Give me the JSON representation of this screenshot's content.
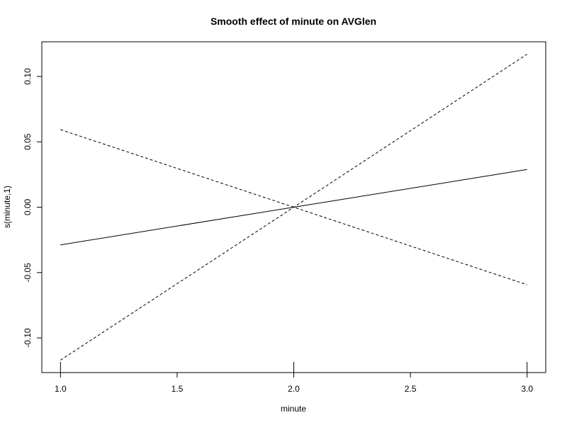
{
  "chart_data": {
    "type": "line",
    "title": "Smooth effect of minute on AVGlen",
    "xlabel": "minute",
    "ylabel": "s(minute,1)",
    "xlim": [
      0.92,
      3.08
    ],
    "ylim": [
      -0.1265,
      0.1265
    ],
    "x_ticks": [
      1.0,
      1.5,
      2.0,
      2.5,
      3.0
    ],
    "x_tick_labels": [
      "1.0",
      "1.5",
      "2.0",
      "2.5",
      "3.0"
    ],
    "y_ticks": [
      -0.1,
      -0.05,
      0.0,
      0.05,
      0.1
    ],
    "y_tick_labels": [
      "-0.10",
      "-0.05",
      "0.00",
      "0.05",
      "0.10"
    ],
    "rug": [
      1.0,
      2.0,
      3.0
    ],
    "grid": false,
    "series": [
      {
        "style": "solid",
        "x": [
          1.0,
          2.0,
          3.0
        ],
        "y": [
          -0.0288,
          0.0,
          0.0288
        ]
      },
      {
        "style": "dashed",
        "x": [
          1.0,
          2.0,
          3.0
        ],
        "y": [
          0.0593,
          0.0,
          -0.0593
        ]
      },
      {
        "style": "dashed",
        "x": [
          1.0,
          2.0,
          3.0
        ],
        "y": [
          -0.117,
          0.0,
          0.117
        ]
      }
    ]
  }
}
